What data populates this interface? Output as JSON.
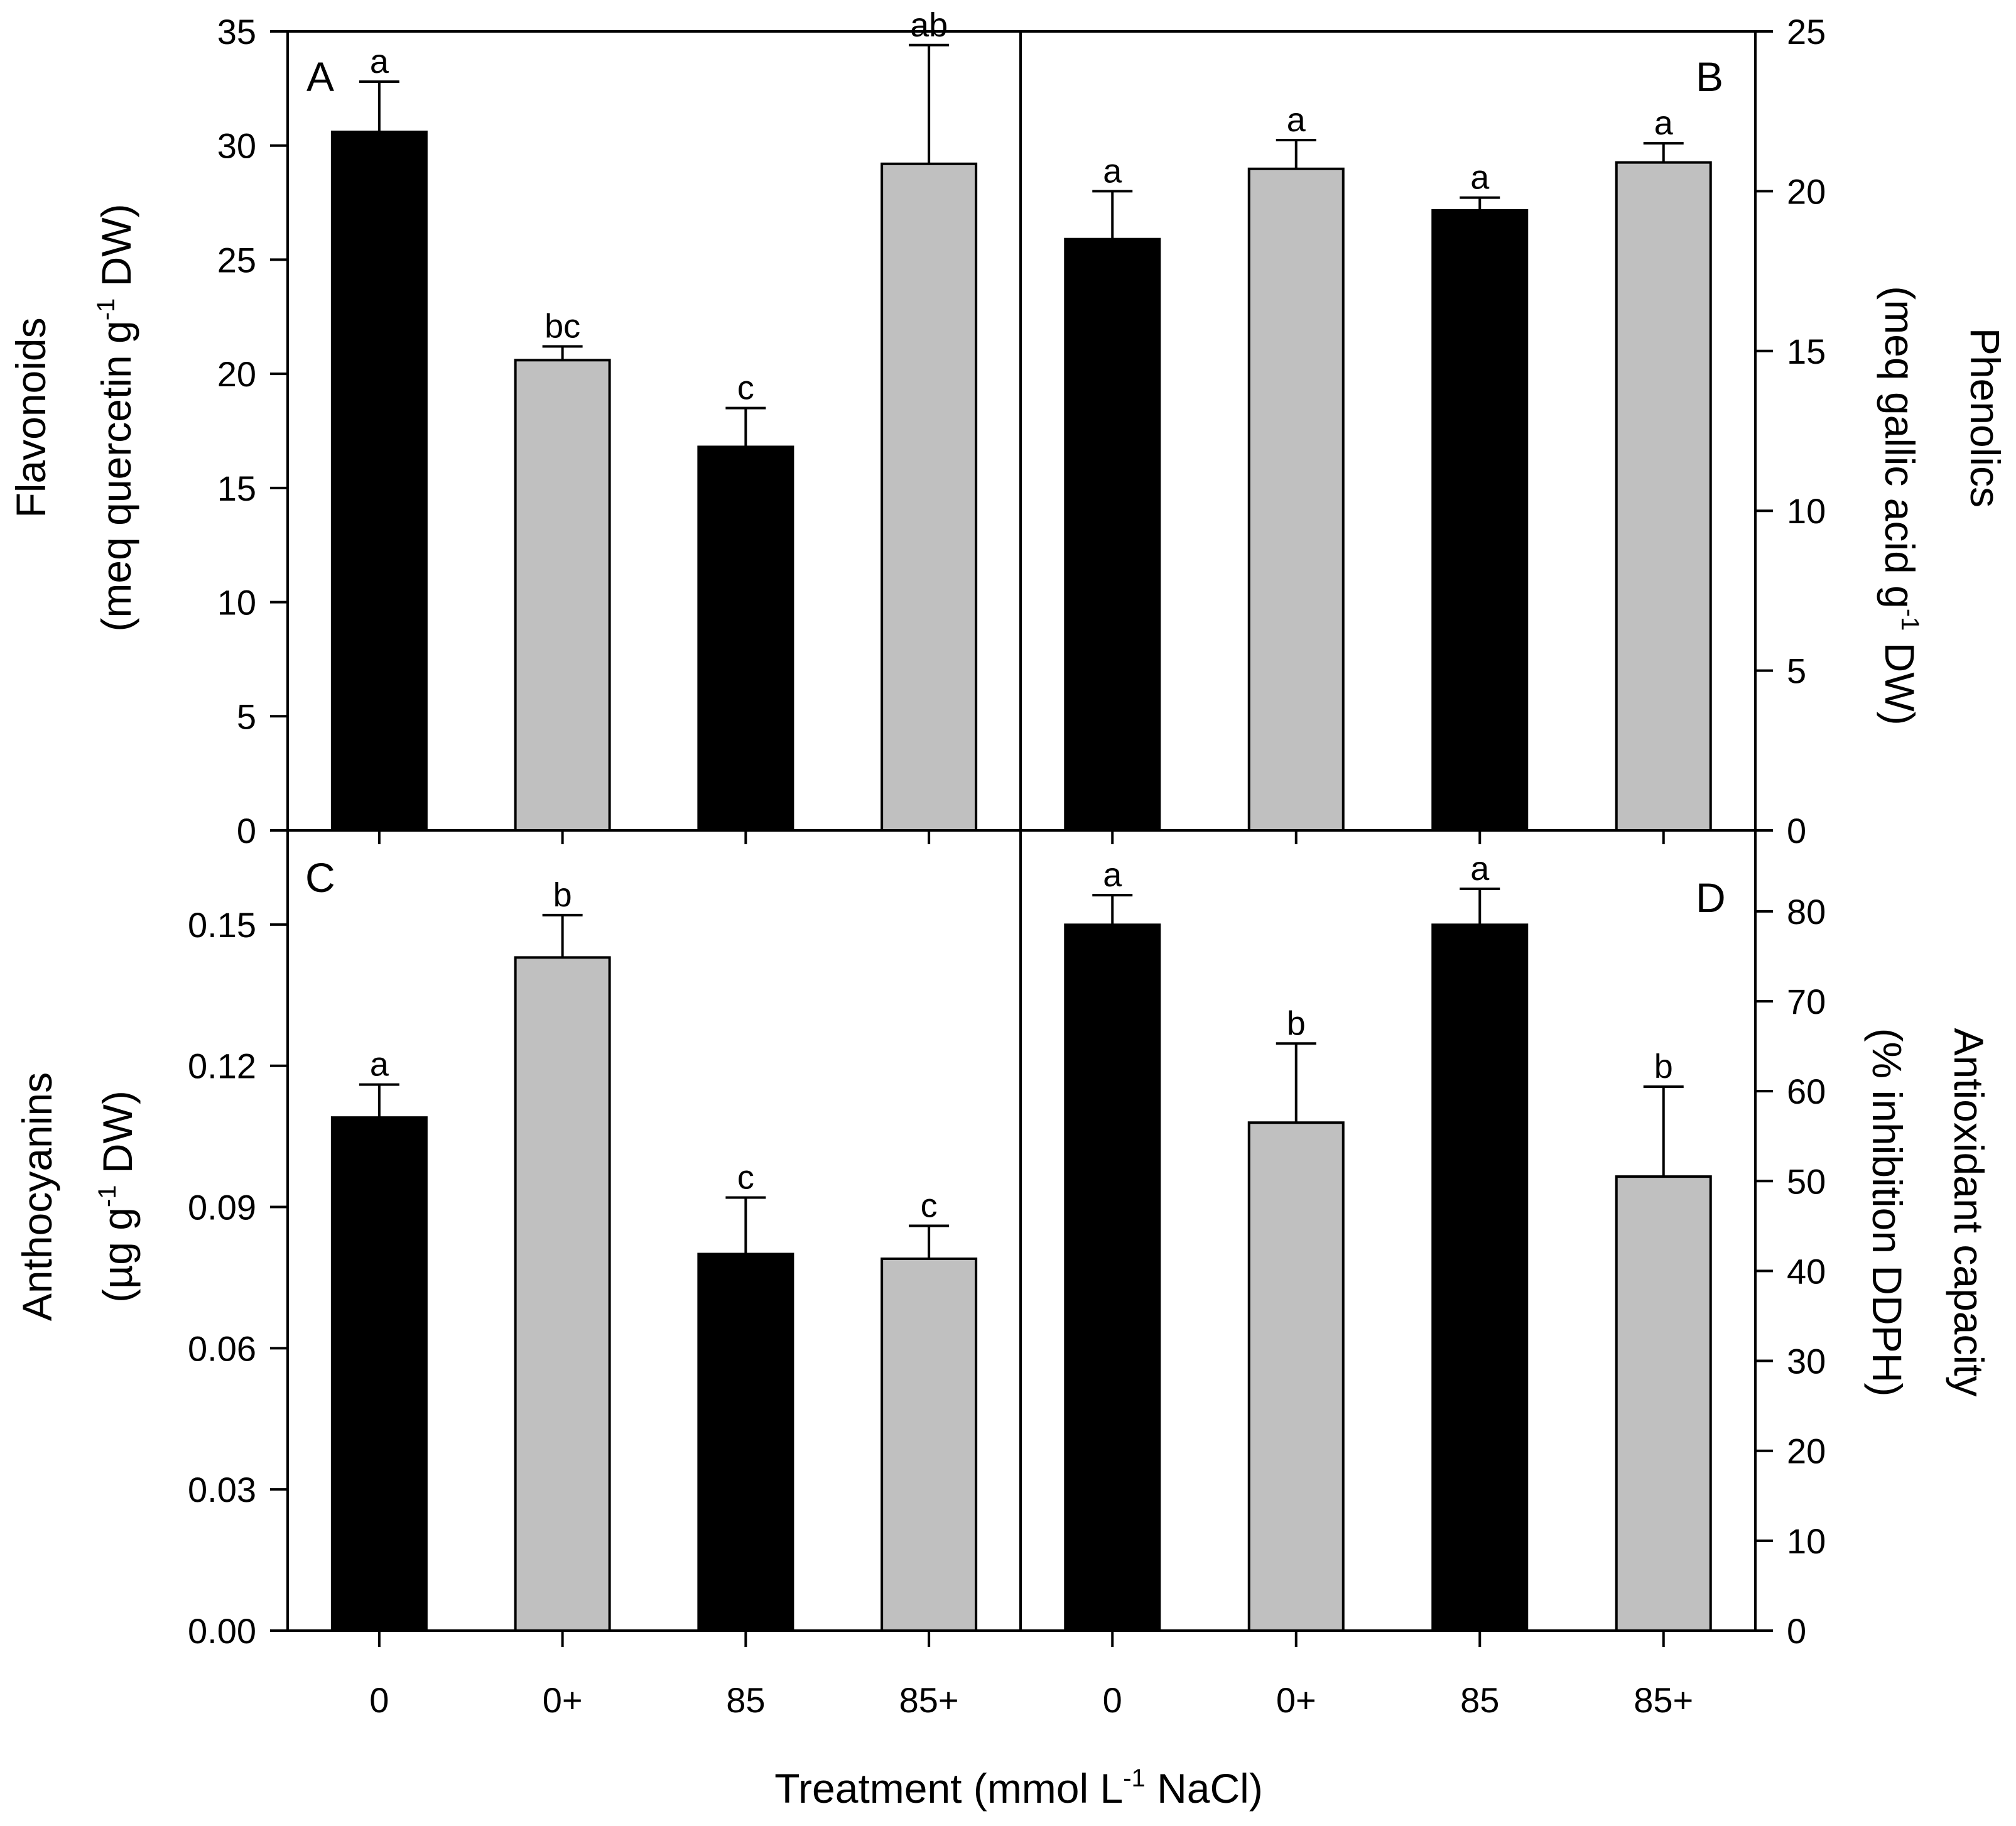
{
  "figure": {
    "x_label": {
      "text": "Treatment (mmol L",
      "sup": "-1",
      "text2": " NaCl)"
    },
    "categories": [
      "0",
      "0+",
      "85",
      "85+"
    ],
    "colors": {
      "black": "#000000",
      "gray": "#c0c0c0",
      "axis": "#000000"
    }
  },
  "chart_data": [
    {
      "panel": "A",
      "type": "bar",
      "title": "",
      "categories": [
        "0",
        "0+",
        "85",
        "85+"
      ],
      "values": [
        30.6,
        20.6,
        16.8,
        29.2
      ],
      "errors": [
        2.2,
        0.6,
        1.7,
        5.2
      ],
      "letters": [
        "a",
        "bc",
        "c",
        "ab"
      ],
      "fills": [
        "black",
        "gray",
        "black",
        "gray"
      ],
      "ylim": [
        0,
        35
      ],
      "ticks": [
        0,
        5,
        10,
        15,
        20,
        25,
        30,
        35
      ],
      "tick_labels": [
        "0",
        "5",
        "10",
        "15",
        "20",
        "25",
        "30",
        "35"
      ],
      "axis_side": "left",
      "ylabel_line1": "Flavonoids",
      "ylabel_line2": {
        "a": "(meq quercetin g",
        "sup": "-1",
        "b": " DW)"
      }
    },
    {
      "panel": "B",
      "type": "bar",
      "title": "",
      "categories": [
        "0",
        "0+",
        "85",
        "85+"
      ],
      "values": [
        18.5,
        20.7,
        19.4,
        20.9
      ],
      "errors": [
        1.5,
        0.9,
        0.4,
        0.6
      ],
      "letters": [
        "a",
        "a",
        "a",
        "a"
      ],
      "fills": [
        "black",
        "gray",
        "black",
        "gray"
      ],
      "ylim": [
        0,
        25
      ],
      "ticks": [
        0,
        5,
        10,
        15,
        20,
        25
      ],
      "tick_labels": [
        "0",
        "5",
        "10",
        "15",
        "20",
        "25"
      ],
      "axis_side": "right",
      "ylabel_line1": "Phenolics",
      "ylabel_line2": {
        "a": "(meq gallic acid g",
        "sup": "-1",
        "b": " DW)"
      }
    },
    {
      "panel": "C",
      "type": "bar",
      "title": "",
      "categories": [
        "0",
        "0+",
        "85",
        "85+"
      ],
      "values": [
        0.109,
        0.143,
        0.08,
        0.079
      ],
      "errors": [
        0.007,
        0.009,
        0.012,
        0.007
      ],
      "letters": [
        "a",
        "b",
        "c",
        "c"
      ],
      "fills": [
        "black",
        "gray",
        "black",
        "gray"
      ],
      "ylim": [
        0,
        0.17
      ],
      "ticks": [
        0,
        0.03,
        0.06,
        0.09,
        0.12,
        0.15
      ],
      "tick_labels": [
        "0.00",
        "0.03",
        "0.06",
        "0.09",
        "0.12",
        "0.15"
      ],
      "axis_side": "left",
      "ylabel_line1": "Anthocyanins",
      "ylabel_line2": {
        "a": "(µg g",
        "sup": "-1",
        "b": " DW)"
      }
    },
    {
      "panel": "D",
      "type": "bar",
      "title": "",
      "categories": [
        "0",
        "0+",
        "85",
        "85+"
      ],
      "values": [
        78.5,
        56.5,
        78.5,
        50.5
      ],
      "errors": [
        3.3,
        8.8,
        4.0,
        10.0
      ],
      "letters": [
        "a",
        "b",
        "a",
        "b"
      ],
      "fills": [
        "black",
        "gray",
        "black",
        "gray"
      ],
      "ylim": [
        0,
        89
      ],
      "ticks": [
        0,
        10,
        20,
        30,
        40,
        50,
        60,
        70,
        80
      ],
      "tick_labels": [
        "0",
        "10",
        "20",
        "30",
        "40",
        "50",
        "60",
        "70",
        "80"
      ],
      "axis_side": "right",
      "ylabel_line1": "Antioxidant capacity",
      "ylabel_line2": {
        "a": "(% inhibition DDPH)",
        "sup": "",
        "b": ""
      }
    }
  ]
}
